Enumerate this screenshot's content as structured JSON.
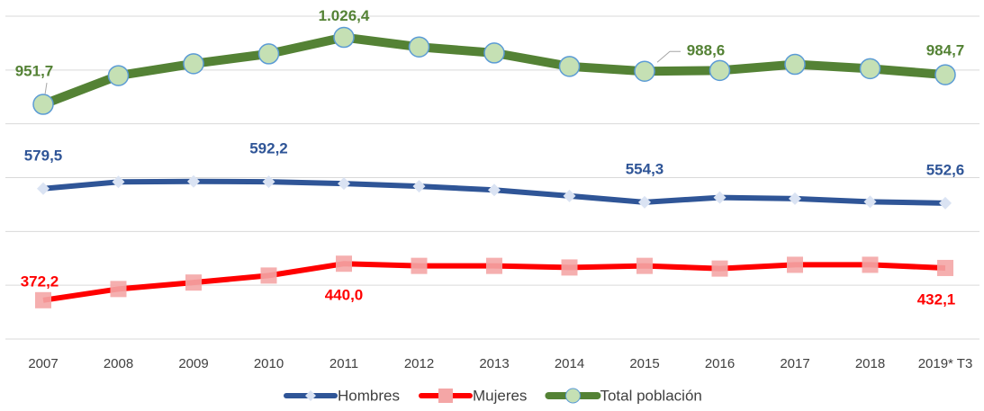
{
  "chart_data": {
    "type": "line",
    "categories": [
      "2007",
      "2008",
      "2009",
      "2010",
      "2011",
      "2012",
      "2013",
      "2014",
      "2015",
      "2016",
      "2017",
      "2018",
      "2019* T3"
    ],
    "ylim": [
      300,
      900
    ],
    "yticks": [
      300,
      400,
      500,
      600,
      700,
      800,
      900
    ],
    "grid": true,
    "y2lim": [
      690,
      1050
    ],
    "legend": "bottom",
    "series": [
      {
        "name": "Hombres",
        "color": "#2f5597",
        "marker": "diamond",
        "values": [
          579.5,
          592,
          593,
          592.2,
          589,
          584,
          577,
          566,
          554.3,
          563,
          561,
          555,
          552.6
        ],
        "value_labels": [
          "579,5",
          null,
          null,
          "592,2",
          null,
          null,
          null,
          null,
          "554,3",
          null,
          null,
          null,
          "552,6"
        ]
      },
      {
        "name": "Mujeres",
        "color": "#ff0000",
        "marker": "square",
        "values": [
          372.2,
          393,
          405,
          418,
          440.0,
          436,
          436,
          433,
          436,
          431,
          438,
          438,
          432.1
        ],
        "value_labels": [
          "372,2",
          null,
          null,
          null,
          "440,0",
          null,
          null,
          null,
          null,
          null,
          null,
          null,
          "432,1"
        ]
      },
      {
        "name": "Total población",
        "color": "#548235",
        "marker": "circle",
        "axis": "y2",
        "values": [
          951.7,
          983.7,
          997,
          1008,
          1026.4,
          1015.7,
          1009,
          994,
          988.6,
          989.5,
          996.3,
          991.5,
          984.7
        ],
        "value_labels": [
          "951,7",
          null,
          null,
          null,
          "1.026,4",
          null,
          null,
          null,
          "988,6",
          null,
          null,
          null,
          "984,7"
        ]
      }
    ]
  }
}
